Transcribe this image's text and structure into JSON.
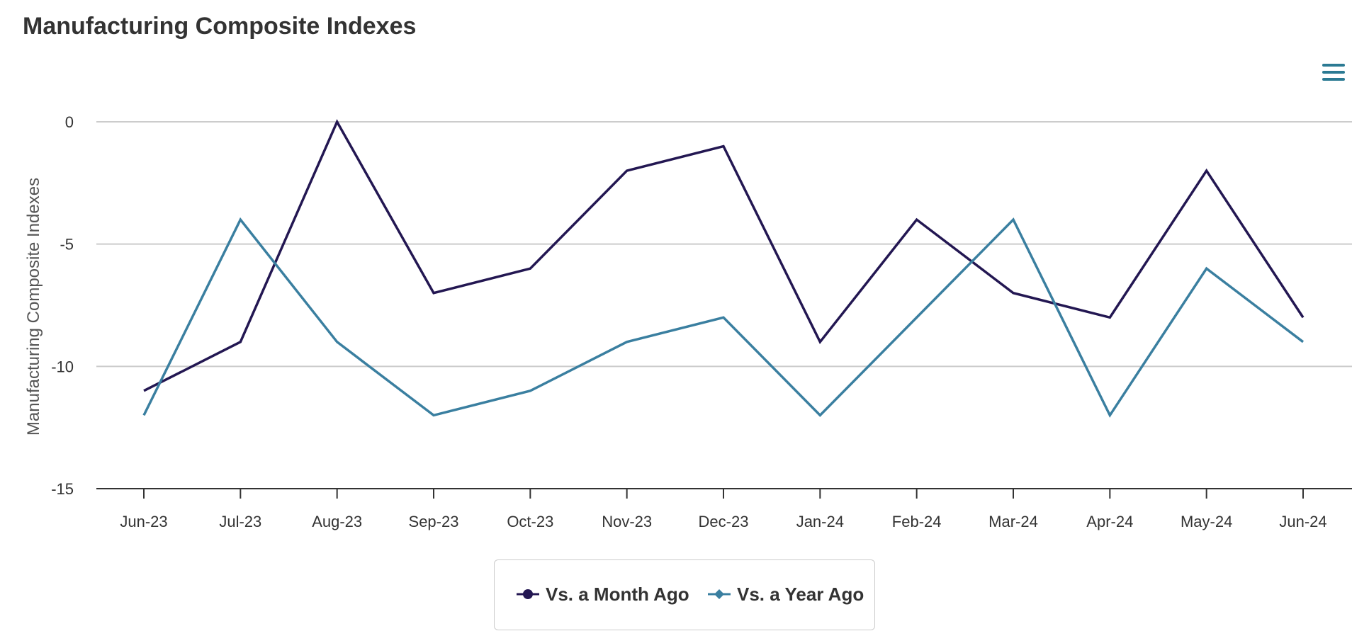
{
  "title": "Manufacturing Composite Indexes",
  "menu_icon": "hamburger-menu-icon",
  "chart_data": {
    "type": "line",
    "title": "Manufacturing Composite Indexes",
    "xlabel": "",
    "ylabel": "Manufacturing Composite Indexes",
    "ylim": [
      -15,
      0
    ],
    "yticks": [
      "0",
      "-5",
      "-10",
      "-15"
    ],
    "ytick_values": [
      0,
      -5,
      -10,
      -15
    ],
    "grid": true,
    "legend_position": "bottom-center",
    "categories": [
      "Jun-23",
      "Jul-23",
      "Aug-23",
      "Sep-23",
      "Oct-23",
      "Nov-23",
      "Dec-23",
      "Jan-24",
      "Feb-24",
      "Mar-24",
      "Apr-24",
      "May-24",
      "Jun-24"
    ],
    "series": [
      {
        "name": "Vs. a Month Ago",
        "color": "#231752",
        "marker": "circle",
        "values": [
          -11,
          -9,
          0,
          -7,
          -6,
          -2,
          -1,
          -9,
          -4,
          -7,
          -8,
          -2,
          -8
        ]
      },
      {
        "name": "Vs. a Year Ago",
        "color": "#3a7fa0",
        "marker": "diamond",
        "values": [
          -12,
          -4,
          -9,
          -12,
          -11,
          -9,
          -8,
          -12,
          -8,
          -4,
          -12,
          -6,
          -9
        ]
      }
    ]
  },
  "colors": {
    "grid": "#cccccc",
    "axis": "#333333",
    "menu": "#2b7a93"
  }
}
